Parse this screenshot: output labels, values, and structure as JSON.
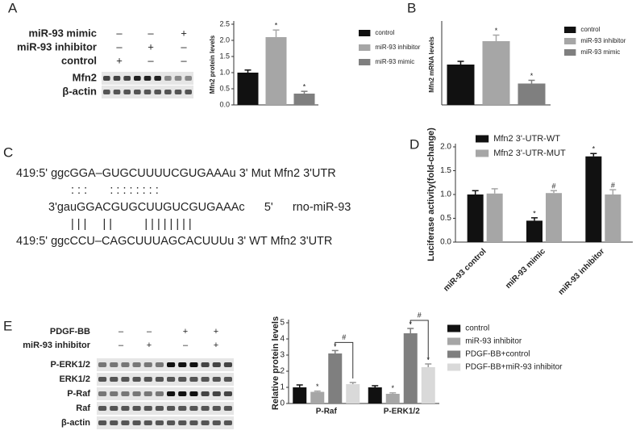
{
  "panels": {
    "letters": [
      "A",
      "B",
      "C",
      "D",
      "E"
    ]
  },
  "blot_a": {
    "conditions": [
      {
        "label": "miR-93 mimic",
        "signs": [
          "–",
          "–",
          "+"
        ]
      },
      {
        "label": "miR-93 inhibitor",
        "signs": [
          "–",
          "+",
          "–"
        ]
      },
      {
        "label": "control",
        "signs": [
          "+",
          "–",
          "–"
        ]
      }
    ],
    "bands": [
      "Mfn2",
      "β-actin"
    ]
  },
  "sequence_c": {
    "lines": [
      "419:5' ggcGGA–GUGCUUUUCGUGAAAu 3' Mut Mfn2 3'UTR",
      ": : :       : : : : : : : :",
      "3'gauGGACGUGCUUGUCGUGAAAc      5'      rno-miR-93",
      "| | |     | |          | | | | | | | |",
      "419:5' ggcCCU–CAGCUUUAGCACUUUu 3' WT Mfn2 3'UTR"
    ]
  },
  "blot_e": {
    "conditions": [
      {
        "label": "PDGF-BB",
        "signs": [
          "–",
          "–",
          "+",
          "+"
        ]
      },
      {
        "label": "miR-93 inhibitor",
        "signs": [
          "–",
          "+",
          "–",
          "+"
        ]
      }
    ],
    "bands": [
      "P-ERK1/2",
      "ERK1/2",
      "P-Raf",
      "Raf",
      "β-actin"
    ]
  },
  "chart_data": [
    {
      "type": "bar",
      "y_label": "Mfn2 protein levels",
      "categories": [
        null
      ],
      "series": [
        {
          "name": "control",
          "color": "#111111",
          "values": [
            1.0
          ],
          "errors": [
            0.08
          ],
          "value_markers": [
            null
          ]
        },
        {
          "name": "miR-93 inhibitor",
          "color": "#a6a6a6",
          "values": [
            2.1
          ],
          "errors": [
            0.22
          ],
          "value_markers": [
            "*"
          ]
        },
        {
          "name": "miR-93 mimic",
          "color": "#7f7f7f",
          "values": [
            0.35
          ],
          "errors": [
            0.07
          ],
          "value_markers": [
            "*"
          ]
        }
      ],
      "ylim": [
        0,
        2.5
      ],
      "yticks": [
        {
          "value": 0,
          "label": "0.0"
        },
        0.5,
        {
          "value": 1,
          "label": "1.0"
        },
        1.5,
        {
          "value": 2,
          "label": "2.0"
        },
        2.5
      ]
    },
    {
      "type": "bar",
      "y_label": "Mfn2 mRNA levels",
      "categories": [
        null
      ],
      "series": [
        {
          "name": "control",
          "color": "#111111",
          "values": [
            1.0
          ],
          "errors": [
            0.08
          ],
          "value_markers": [
            null
          ]
        },
        {
          "name": "miR-93 inhibitor",
          "color": "#a6a6a6",
          "values": [
            1.58
          ],
          "errors": [
            0.15
          ],
          "value_markers": [
            "*"
          ]
        },
        {
          "name": "miR-93 mimic",
          "color": "#7f7f7f",
          "values": [
            0.53
          ],
          "errors": [
            0.08
          ],
          "value_markers": [
            "*"
          ]
        }
      ],
      "ylim": [
        0,
        2
      ]
    },
    {
      "type": "bar",
      "y_label": "Luciferase activity(fold-change)",
      "categories": [
        "miR-93 control",
        "miR-93 mimic",
        "miR-93 inhibitor"
      ],
      "series": [
        {
          "name": "Mfn2 3'-UTR-WT",
          "color": "#111111",
          "values": [
            1.0,
            0.45,
            1.8
          ],
          "errors": [
            0.08,
            0.06,
            0.06
          ],
          "value_markers": [
            null,
            "*",
            "*"
          ]
        },
        {
          "name": "Mfn2 3'-UTR-MUT",
          "color": "#a6a6a6",
          "values": [
            1.02,
            1.03,
            1.0
          ],
          "errors": [
            0.1,
            0.05,
            0.1
          ],
          "value_markers": [
            null,
            "#",
            "#"
          ]
        }
      ],
      "ylim": [
        0,
        2
      ],
      "yticks": [
        {
          "value": 0,
          "label": "0.0"
        },
        0.5,
        {
          "value": 1,
          "label": "1.0"
        },
        1.5,
        {
          "value": 2,
          "label": "2.0"
        }
      ]
    },
    {
      "type": "bar",
      "y_label": "Relative protein levels",
      "categories": [
        "P-Raf",
        "P-ERK1/2"
      ],
      "series": [
        {
          "name": "control",
          "color": "#111111",
          "values": [
            1.0,
            1.0
          ],
          "errors": [
            0.15,
            0.1
          ],
          "value_markers": [
            null,
            null
          ]
        },
        {
          "name": "miR-93 inhibitor",
          "color": "#a6a6a6",
          "values": [
            0.72,
            0.6
          ],
          "errors": [
            0.05,
            0.06
          ],
          "value_markers": [
            "*",
            "*"
          ]
        },
        {
          "name": "PDGF-BB+control",
          "color": "#7f7f7f",
          "values": [
            3.1,
            4.35
          ],
          "errors": [
            0.18,
            0.3
          ],
          "value_markers": [
            "*",
            "*"
          ]
        },
        {
          "name": "PDGF-BB+miR-93 inhibitor",
          "color": "#d9d9d9",
          "values": [
            1.2,
            2.25
          ],
          "errors": [
            0.1,
            0.2
          ],
          "value_markers": [
            null,
            "*"
          ]
        }
      ],
      "bracket_labels": [
        "#",
        "#"
      ],
      "ylim": [
        0,
        5
      ],
      "yticks": [
        0,
        1,
        2,
        3,
        4,
        5
      ]
    }
  ]
}
